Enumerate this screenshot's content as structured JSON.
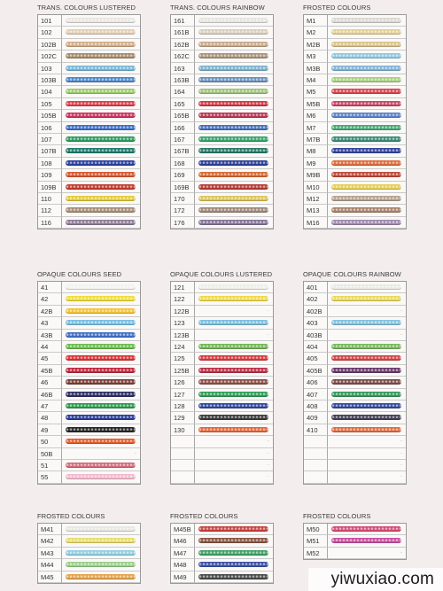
{
  "panels": [
    {
      "title": "TRANS. COLOURS LUSTERED",
      "items": [
        {
          "code": "101",
          "color": "#e9e6e1"
        },
        {
          "code": "102",
          "color": "#e2cdb2"
        },
        {
          "code": "102B",
          "color": "#d5ac86"
        },
        {
          "code": "102C",
          "color": "#a58a6a"
        },
        {
          "code": "103",
          "color": "#78b6d8"
        },
        {
          "code": "103B",
          "color": "#4c86c7"
        },
        {
          "code": "104",
          "color": "#9acb6a"
        },
        {
          "code": "105",
          "color": "#d9404a"
        },
        {
          "code": "105B",
          "color": "#c7345e"
        },
        {
          "code": "106",
          "color": "#3f6fc4"
        },
        {
          "code": "107",
          "color": "#2d9a5c"
        },
        {
          "code": "107B",
          "color": "#1f7d6c"
        },
        {
          "code": "108",
          "color": "#2a3f9e"
        },
        {
          "code": "109",
          "color": "#d85a31"
        },
        {
          "code": "109B",
          "color": "#c03a2d"
        },
        {
          "code": "110",
          "color": "#e3cc3a"
        },
        {
          "code": "112",
          "color": "#a58b73"
        },
        {
          "code": "116",
          "color": "#8f7d97"
        }
      ]
    },
    {
      "title": "TRANS. COLOURS RAINBOW",
      "items": [
        {
          "code": "161",
          "color": "#e6e4df"
        },
        {
          "code": "161B",
          "color": "#d8cdbc"
        },
        {
          "code": "162B",
          "color": "#caa98a"
        },
        {
          "code": "162C",
          "color": "#a89178"
        },
        {
          "code": "163",
          "color": "#7ab2cf"
        },
        {
          "code": "163B",
          "color": "#6a8fbd"
        },
        {
          "code": "164",
          "color": "#9ec27a"
        },
        {
          "code": "165",
          "color": "#cf3b47"
        },
        {
          "code": "165B",
          "color": "#b63954"
        },
        {
          "code": "166",
          "color": "#4670b8"
        },
        {
          "code": "167",
          "color": "#34a26a"
        },
        {
          "code": "167B",
          "color": "#2a7a68"
        },
        {
          "code": "168",
          "color": "#2c3e95"
        },
        {
          "code": "169",
          "color": "#d66a34"
        },
        {
          "code": "169B",
          "color": "#b43a34"
        },
        {
          "code": "170",
          "color": "#dcc45a"
        },
        {
          "code": "172",
          "color": "#9d8676"
        },
        {
          "code": "176",
          "color": "#85749a"
        }
      ]
    },
    {
      "title": "FROSTED COLOURS",
      "items": [
        {
          "code": "M1",
          "color": "#dad8d2"
        },
        {
          "code": "M2",
          "color": "#e3cf93"
        },
        {
          "code": "M2B",
          "color": "#dcc28a"
        },
        {
          "code": "M3",
          "color": "#8ec7e0"
        },
        {
          "code": "M3B",
          "color": "#7fb4d6"
        },
        {
          "code": "M4",
          "color": "#a7cf7d"
        },
        {
          "code": "M5",
          "color": "#d7464e"
        },
        {
          "code": "M5B",
          "color": "#c74765"
        },
        {
          "code": "M6",
          "color": "#5c82c6"
        },
        {
          "code": "M7",
          "color": "#48a873"
        },
        {
          "code": "M7B",
          "color": "#398a73"
        },
        {
          "code": "M8",
          "color": "#34479f"
        },
        {
          "code": "M9",
          "color": "#dc6a39"
        },
        {
          "code": "M9B",
          "color": "#c24a3c"
        },
        {
          "code": "M10",
          "color": "#e4ce55"
        },
        {
          "code": "M12",
          "color": "#b5a190"
        },
        {
          "code": "M13",
          "color": "#a88168"
        },
        {
          "code": "M16",
          "color": "#a08ab0"
        }
      ]
    },
    {
      "title": "OPAQUE COLOURS SEED",
      "items": [
        {
          "code": "41",
          "color": "#f2f1ec"
        },
        {
          "code": "42",
          "color": "#f0dd38"
        },
        {
          "code": "42B",
          "color": "#f3c233"
        },
        {
          "code": "43",
          "color": "#78bfe2"
        },
        {
          "code": "43B",
          "color": "#3f6fc6"
        },
        {
          "code": "44",
          "color": "#6dbd4b"
        },
        {
          "code": "45",
          "color": "#d93232"
        },
        {
          "code": "45B",
          "color": "#c2283f"
        },
        {
          "code": "46",
          "color": "#7a3d34"
        },
        {
          "code": "46B",
          "color": "#2e2e66"
        },
        {
          "code": "47",
          "color": "#2d9a4d"
        },
        {
          "code": "48",
          "color": "#2a3d95"
        },
        {
          "code": "49",
          "color": "#262626"
        },
        {
          "code": "50",
          "color": "#e25c2a"
        },
        {
          "code": "50B",
          "color": ""
        },
        {
          "code": "51",
          "color": "#d36a7a"
        },
        {
          "code": "55",
          "color": "#f3b9cd"
        }
      ]
    },
    {
      "title": "OPAQUE COLOURS LUSTERED",
      "items": [
        {
          "code": "121",
          "color": "#eeede6"
        },
        {
          "code": "122",
          "color": "#efd94a"
        },
        {
          "code": "122B",
          "color": ""
        },
        {
          "code": "123",
          "color": "#7cbfdf"
        },
        {
          "code": "123B",
          "color": ""
        },
        {
          "code": "124",
          "color": "#73b955"
        },
        {
          "code": "125",
          "color": "#d7383c"
        },
        {
          "code": "125B",
          "color": "#bd3048"
        },
        {
          "code": "126",
          "color": "#8a4d44"
        },
        {
          "code": "127",
          "color": "#2f9e55"
        },
        {
          "code": "128",
          "color": "#2f47a0"
        },
        {
          "code": "129",
          "color": "#3a3a3a"
        },
        {
          "code": "130",
          "color": "#e2653a"
        },
        {
          "code": "",
          "color": ""
        },
        {
          "code": "",
          "color": ""
        },
        {
          "code": "",
          "color": ""
        },
        {
          "code": "",
          "color": ""
        }
      ]
    },
    {
      "title": "OPAQUE COLOURS RAINBOW",
      "items": [
        {
          "code": "401",
          "color": "#ebe9e2"
        },
        {
          "code": "402",
          "color": "#ead85a"
        },
        {
          "code": "402B",
          "color": ""
        },
        {
          "code": "403",
          "color": "#84c2dd"
        },
        {
          "code": "403B",
          "color": ""
        },
        {
          "code": "404",
          "color": "#78b95e"
        },
        {
          "code": "405",
          "color": "#d14344"
        },
        {
          "code": "405B",
          "color": "#6b3a6e"
        },
        {
          "code": "406",
          "color": "#7a4a49"
        },
        {
          "code": "407",
          "color": "#33995a"
        },
        {
          "code": "408",
          "color": "#33489e"
        },
        {
          "code": "409",
          "color": "#433f52"
        },
        {
          "code": "410",
          "color": "#df6a40"
        },
        {
          "code": "",
          "color": ""
        },
        {
          "code": "",
          "color": ""
        },
        {
          "code": "",
          "color": ""
        },
        {
          "code": "",
          "color": ""
        }
      ]
    },
    {
      "title": "FROSTED COLOURS",
      "items": [
        {
          "code": "M41",
          "color": "#e6e6e1"
        },
        {
          "code": "M42",
          "color": "#e8dc6a"
        },
        {
          "code": "M43",
          "color": "#8fcde2"
        },
        {
          "code": "M44",
          "color": "#9ad08a"
        },
        {
          "code": "M45",
          "color": "#e3a24a"
        }
      ]
    },
    {
      "title": "FROSTED COLOURS",
      "items": [
        {
          "code": "M45B",
          "color": "#c7403e"
        },
        {
          "code": "M46",
          "color": "#8a5744"
        },
        {
          "code": "M47",
          "color": "#3f9f64"
        },
        {
          "code": "M48",
          "color": "#3e52a6"
        },
        {
          "code": "M49",
          "color": "#4a4a4a"
        }
      ]
    },
    {
      "title": "FROSTED COLOURS",
      "items": [
        {
          "code": "M50",
          "color": "#d44a73"
        },
        {
          "code": "M51",
          "color": "#c94fa2"
        },
        {
          "code": "M52",
          "color": ""
        }
      ]
    }
  ],
  "watermark": "yiwuxiao.com"
}
